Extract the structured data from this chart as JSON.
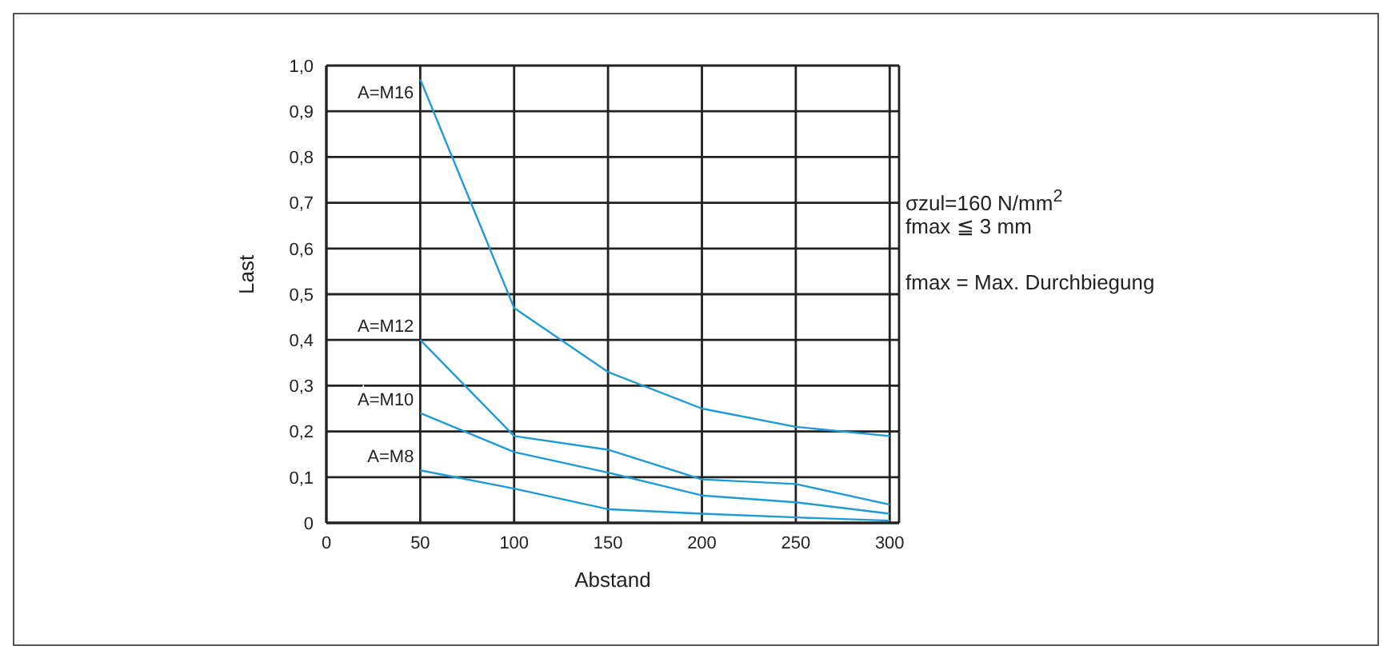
{
  "chart_data": {
    "type": "line",
    "xlabel": "Abstand",
    "ylabel": "Last",
    "x": [
      50,
      100,
      150,
      200,
      250,
      300
    ],
    "series": [
      {
        "name": "A=M16",
        "color": "#1e9ad6",
        "values": [
          0.97,
          0.47,
          0.33,
          0.25,
          0.21,
          0.19
        ]
      },
      {
        "name": "A=M12",
        "color": "#1e9ad6",
        "values": [
          0.4,
          0.19,
          0.16,
          0.095,
          0.085,
          0.04
        ]
      },
      {
        "name": "A=M10",
        "color": "#1e9ad6",
        "values": [
          0.24,
          0.155,
          0.11,
          0.06,
          0.045,
          0.02
        ]
      },
      {
        "name": "A=M8",
        "color": "#1e9ad6",
        "values": [
          0.115,
          0.075,
          0.03,
          0.02,
          0.012,
          0.005
        ]
      }
    ],
    "xlim": [
      0,
      305
    ],
    "xticks": [
      0,
      50,
      100,
      150,
      200,
      250,
      300
    ],
    "ylim": [
      0,
      1.0
    ],
    "yticks": [
      0,
      {
        "value": 0.1,
        "label": "0,1"
      },
      {
        "value": 0.2,
        "label": "0,2"
      },
      {
        "value": 0.3,
        "label": "0,3"
      },
      {
        "value": 0.4,
        "label": "0,4"
      },
      {
        "value": 0.5,
        "label": "0,5"
      },
      {
        "value": 0.6,
        "label": "0,6"
      },
      {
        "value": 0.7,
        "label": "0,7"
      },
      {
        "value": 0.8,
        "label": "0,8"
      },
      {
        "value": 0.9,
        "label": "0,9"
      },
      {
        "value": 1.0,
        "label": "1,0"
      }
    ],
    "grid": true,
    "legend": false,
    "annotations": [
      "σzul=160 N/mm$^{2}$",
      "fmax ≦ 3 mm",
      "fmax = Max. Durchbiegung"
    ]
  }
}
